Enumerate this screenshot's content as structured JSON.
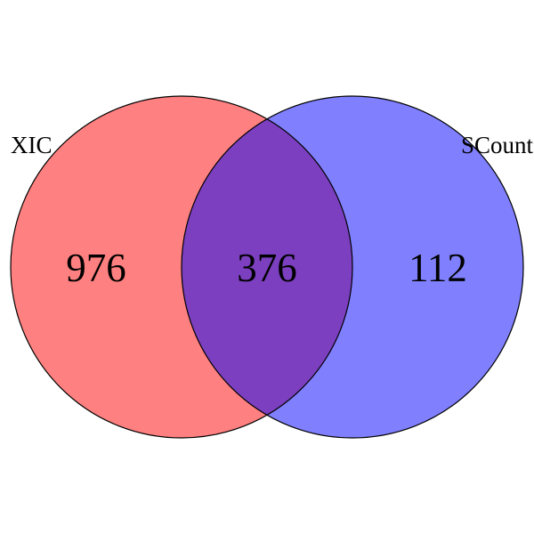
{
  "chart_data": {
    "type": "venn",
    "sets": [
      {
        "name": "XIC",
        "only_count": "976",
        "color": "#ff8080"
      },
      {
        "name": "SCount",
        "only_count": "112",
        "color": "#8080ff"
      }
    ],
    "intersection": {
      "count": "376",
      "color": "#7b3fbf"
    }
  }
}
